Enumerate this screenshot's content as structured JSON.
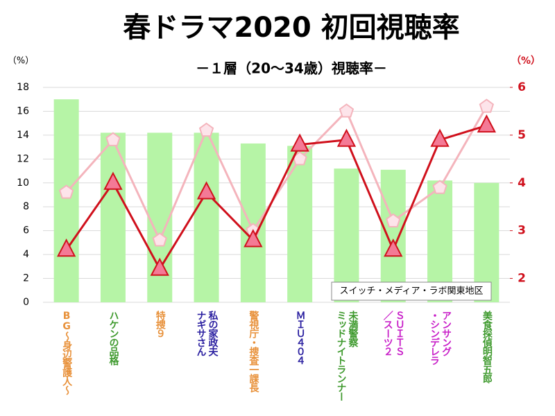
{
  "chart_data": {
    "type": "bar-line",
    "title": "春ドラマ2020 初回視聴率",
    "subtitle": "－１層（20～34歳）視聴率－",
    "y_unit": "（%）",
    "y2_unit": "（%）",
    "annotation": "スイッチ・メディア・ラボ関東地区",
    "categories": [
      "BG～身辺警護人～",
      "ハケンの品格",
      "特捜９",
      "私の家政夫\nナギサさん",
      "警視庁・捜査一課長",
      "ＭＩＵ４０４",
      "未満警察\nミッドナイトランナー",
      "ＳＵＩＴＳ\n／スーツ２",
      "アンサング\n・シンデレラ",
      "美食探偵明智五郎"
    ],
    "category_colors": [
      "#e8913a",
      "#3f9a2e",
      "#e8913a",
      "#2a1fa0",
      "#e8913a",
      "#2a1fa0",
      "#3f9a2e",
      "#c81fc8",
      "#c81fc8",
      "#3f9a2e"
    ],
    "series": [
      {
        "type": "bar",
        "color": "#b6f4a6",
        "values": [
          17.0,
          14.2,
          14.2,
          14.2,
          13.3,
          13.1,
          11.2,
          11.1,
          10.2,
          10.0
        ]
      },
      {
        "type": "line",
        "axis": "y2",
        "marker": "pentagon",
        "color": "#f4b4bc",
        "values": [
          3.8,
          4.9,
          2.8,
          5.1,
          3.0,
          4.5,
          5.5,
          3.2,
          3.9,
          5.6
        ]
      },
      {
        "type": "line",
        "axis": "y2",
        "marker": "triangle",
        "color": "#d0101c",
        "values": [
          2.6,
          4.0,
          2.2,
          3.8,
          2.8,
          4.8,
          4.9,
          2.6,
          4.9,
          5.2
        ]
      }
    ],
    "ylim": [
      0,
      18
    ],
    "yticks": [
      0,
      2,
      4,
      6,
      8,
      10,
      12,
      14,
      16,
      18
    ],
    "y2lim": [
      1.5,
      6
    ],
    "y2ticks": [
      2,
      3,
      4,
      5,
      6
    ],
    "grid": true
  }
}
